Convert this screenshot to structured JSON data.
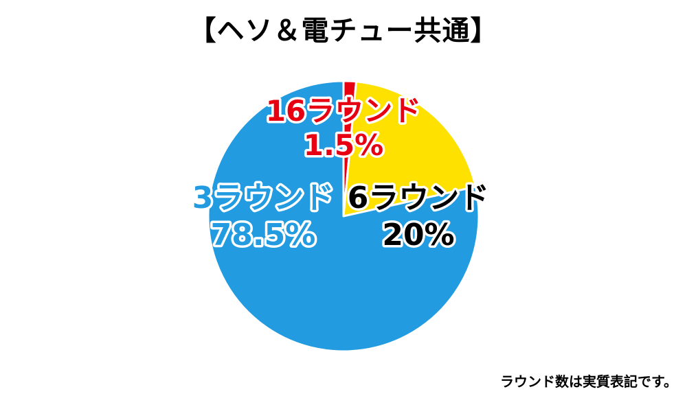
{
  "chart_data": {
    "type": "pie",
    "title": "【ヘソ＆電チュー共通】",
    "slices": [
      {
        "label": "16ラウンド",
        "value_label": "1.5%",
        "value": 1.5,
        "color": "#e60012",
        "text_color": "#e60012"
      },
      {
        "label": "6ラウンド",
        "value_label": "20%",
        "value": 20,
        "color": "#ffe100",
        "text_color": "#000000"
      },
      {
        "label": "3ラウンド",
        "value_label": "78.5%",
        "value": 78.5,
        "color": "#229be0",
        "text_color": "#229be0"
      }
    ]
  },
  "footnote": "ラウンド数は実質表記です。"
}
